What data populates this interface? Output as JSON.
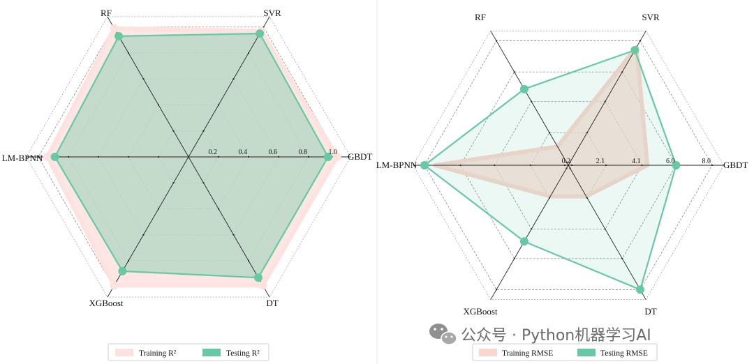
{
  "watermark": "公众号 · Python机器学习AI",
  "chart_data": [
    {
      "type": "radar",
      "id": "r2",
      "axes": [
        "GBDT",
        "SVR",
        "RF",
        "LM-BPNN",
        "XGBoost",
        "DT"
      ],
      "rmax": 1.0,
      "rings": [
        0.2,
        0.4,
        0.6,
        0.8,
        1.0
      ],
      "tick_labels": [
        "0.2",
        "0.4",
        "0.6",
        "0.8",
        "1.0"
      ],
      "series": [
        {
          "name": "Training R²",
          "values": [
            0.99,
            0.97,
            0.99,
            0.94,
            0.99,
            0.99
          ],
          "color": "#fde2df",
          "fill_opacity": 0.85,
          "markers": true
        },
        {
          "name": "Testing R²",
          "values": [
            0.93,
            0.95,
            0.93,
            0.89,
            0.88,
            0.93
          ],
          "color": "#66c9a4",
          "fill_opacity": 0.38,
          "markers": true
        }
      ]
    },
    {
      "type": "radar",
      "id": "rmse",
      "axes": [
        "GBDT",
        "SVR",
        "RF",
        "LM-BPNN",
        "XGBoost",
        "DT"
      ],
      "rmax": 8.0,
      "rings": [
        0.2,
        2.1,
        4.1,
        6.0,
        8.0
      ],
      "tick_labels": [
        "0.2",
        "2.1",
        "4.1",
        "6.0",
        "8.0"
      ],
      "series": [
        {
          "name": "Training RMSE",
          "values": [
            4.4,
            7.6,
            1.2,
            7.4,
            2.0,
            2.0
          ],
          "color": "#f9d7cf",
          "fill_opacity": 0.7,
          "markers": false
        },
        {
          "name": "Testing RMSE",
          "values": [
            6.0,
            7.4,
            4.9,
            8.0,
            4.9,
            8.0
          ],
          "color": "#66c9a4",
          "fill_opacity": 0.12,
          "markers": true
        }
      ]
    }
  ]
}
